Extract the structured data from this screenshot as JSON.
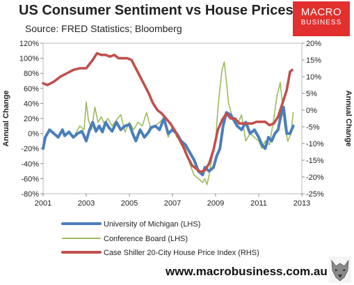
{
  "title": "US Consumer Sentiment vs House Prices",
  "subtitle": "Source: FRED Statistics; Bloomberg",
  "brand": {
    "line1": "MACRO",
    "line2": "BUSINESS",
    "color": "#e1302d"
  },
  "website": "www.macrobusiness.com.au",
  "chart_data": {
    "type": "line",
    "xlim": [
      2001,
      2013
    ],
    "x_ticks": [
      "2001",
      "2003",
      "2005",
      "2007",
      "2009",
      "2011",
      "2013"
    ],
    "x_tick_values": [
      2001,
      2003,
      2005,
      2007,
      2009,
      2011,
      2013
    ],
    "y_left": {
      "label": "Annual Change",
      "lim": [
        -80,
        120
      ],
      "ticks": [
        "-80%",
        "-60%",
        "-40%",
        "-20%",
        "0%",
        "20%",
        "40%",
        "60%",
        "80%",
        "100%",
        "120%"
      ],
      "tick_values": [
        -80,
        -60,
        -40,
        -20,
        0,
        20,
        40,
        60,
        80,
        100,
        120
      ]
    },
    "y_right": {
      "label": "Annual Change",
      "lim": [
        -25,
        20
      ],
      "ticks": [
        "-25%",
        "-20%",
        "-15%",
        "-10%",
        "-5%",
        "0%",
        "5%",
        "10%",
        "15%",
        "20%"
      ],
      "tick_values": [
        -25,
        -20,
        -15,
        -10,
        -5,
        0,
        5,
        10,
        15,
        20
      ]
    },
    "grid": false,
    "legend_position": "bottom",
    "series": [
      {
        "name": "University of Michigan (LHS)",
        "axis": "left",
        "color": "#4a7ebb",
        "x": [
          2001.0,
          2001.1,
          2001.3,
          2001.5,
          2001.7,
          2001.9,
          2002.0,
          2002.2,
          2002.4,
          2002.6,
          2002.8,
          2003.0,
          2003.15,
          2003.3,
          2003.45,
          2003.6,
          2003.75,
          2003.9,
          2004.05,
          2004.2,
          2004.4,
          2004.6,
          2004.8,
          2005.0,
          2005.15,
          2005.3,
          2005.5,
          2005.7,
          2005.9,
          2006.0,
          2006.2,
          2006.4,
          2006.6,
          2006.8,
          2007.0,
          2007.2,
          2007.4,
          2007.6,
          2007.8,
          2008.0,
          2008.2,
          2008.4,
          2008.5,
          2008.7,
          2008.9,
          2009.05,
          2009.2,
          2009.35,
          2009.5,
          2009.7,
          2009.9,
          2010.0,
          2010.2,
          2010.4,
          2010.6,
          2010.8,
          2011.0,
          2011.15,
          2011.3,
          2011.45,
          2011.6,
          2011.75,
          2011.9,
          2012.0,
          2012.15,
          2012.3,
          2012.45,
          2012.6
        ],
        "values": [
          -20,
          -5,
          5,
          0,
          -5,
          5,
          -3,
          2,
          -5,
          0,
          3,
          -10,
          5,
          15,
          3,
          10,
          2,
          15,
          8,
          3,
          15,
          5,
          10,
          12,
          0,
          -10,
          5,
          -5,
          2,
          8,
          10,
          5,
          20,
          0,
          5,
          0,
          -10,
          -15,
          -25,
          -35,
          -50,
          -55,
          -45,
          -50,
          -45,
          -30,
          -20,
          10,
          28,
          25,
          15,
          10,
          5,
          15,
          0,
          5,
          -5,
          -15,
          -20,
          -5,
          -10,
          0,
          5,
          20,
          35,
          0,
          0,
          10
        ]
      },
      {
        "name": "Conference Board (LHS)",
        "axis": "left",
        "color": "#9bbb59",
        "x": [
          2002.5,
          2002.7,
          2002.9,
          2003.0,
          2003.1,
          2003.25,
          2003.4,
          2003.55,
          2003.7,
          2003.85,
          2004.0,
          2004.2,
          2004.4,
          2004.6,
          2004.8,
          2005.0,
          2005.2,
          2005.4,
          2005.6,
          2005.8,
          2006.0,
          2006.2,
          2006.4,
          2006.6,
          2006.8,
          2007.0,
          2007.2,
          2007.4,
          2007.6,
          2007.8,
          2008.0,
          2008.2,
          2008.4,
          2008.5,
          2008.6,
          2008.7,
          2008.85,
          2009.0,
          2009.1,
          2009.2,
          2009.3,
          2009.4,
          2009.5,
          2009.6,
          2009.7,
          2009.8,
          2010.0,
          2010.2,
          2010.4,
          2010.6,
          2010.8,
          2011.0,
          2011.15,
          2011.3,
          2011.5,
          2011.7,
          2011.85,
          2012.0,
          2012.1,
          2012.2,
          2012.35,
          2012.5,
          2012.6
        ],
        "values": [
          0,
          10,
          5,
          42,
          18,
          5,
          35,
          15,
          22,
          12,
          20,
          10,
          18,
          25,
          2,
          15,
          5,
          15,
          10,
          28,
          5,
          10,
          15,
          20,
          -5,
          10,
          -5,
          -10,
          -20,
          -40,
          -55,
          -60,
          -65,
          -60,
          -68,
          -55,
          -30,
          -10,
          30,
          60,
          85,
          95,
          70,
          40,
          30,
          20,
          10,
          25,
          -10,
          0,
          -5,
          -10,
          -20,
          -10,
          -15,
          20,
          50,
          68,
          40,
          10,
          -10,
          0,
          28
        ]
      },
      {
        "name": "Case Shiller 20-City House Price Index (RHS)",
        "axis": "right",
        "color": "#c0504d",
        "x": [
          2001.0,
          2001.2,
          2001.5,
          2001.8,
          2002.1,
          2002.4,
          2002.7,
          2003.0,
          2003.3,
          2003.5,
          2003.7,
          2003.9,
          2004.1,
          2004.3,
          2004.5,
          2004.7,
          2004.9,
          2005.1,
          2005.3,
          2005.5,
          2005.7,
          2005.9,
          2006.1,
          2006.3,
          2006.5,
          2006.7,
          2006.9,
          2007.1,
          2007.3,
          2007.5,
          2007.7,
          2007.9,
          2008.1,
          2008.3,
          2008.5,
          2008.7,
          2008.9,
          2009.1,
          2009.3,
          2009.5,
          2009.7,
          2009.9,
          2010.1,
          2010.3,
          2010.5,
          2010.7,
          2010.9,
          2011.1,
          2011.3,
          2011.5,
          2011.7,
          2011.9,
          2012.1,
          2012.3,
          2012.45,
          2012.55
        ],
        "values": [
          8,
          7.5,
          8.5,
          10,
          11,
          12,
          12.5,
          12.5,
          15,
          17,
          16.5,
          16.5,
          16,
          16.5,
          15.5,
          15.5,
          15.5,
          15,
          12.5,
          10,
          7.5,
          5,
          2,
          0,
          -1,
          -2.5,
          -4,
          -6,
          -8.5,
          -11,
          -14,
          -16.5,
          -17.5,
          -18.5,
          -18,
          -16,
          -12,
          -6,
          -3,
          -1,
          -2.5,
          -2.5,
          -4,
          -4,
          -4,
          -4,
          -3.5,
          -3.5,
          -3.5,
          -4.5,
          -4,
          -2,
          2,
          6,
          11.5,
          12
        ]
      }
    ]
  }
}
